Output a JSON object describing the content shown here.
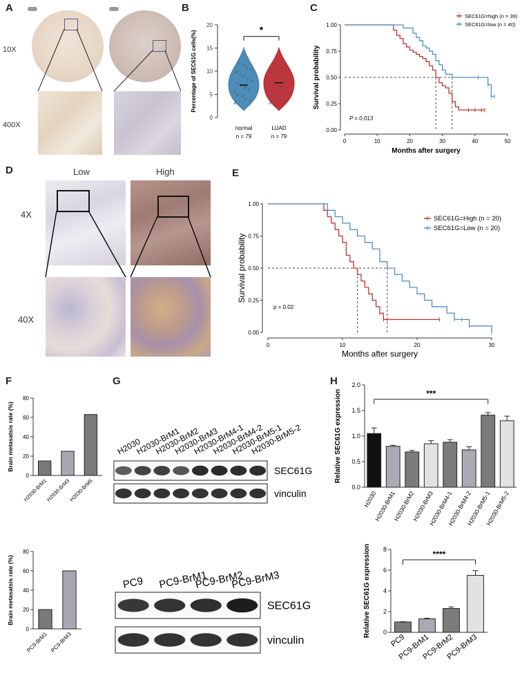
{
  "panels": {
    "a": {
      "letter": "A",
      "mag_low": "10X",
      "mag_high": "400X"
    },
    "b": {
      "letter": "B"
    },
    "c": {
      "letter": "C"
    },
    "d": {
      "letter": "D",
      "col_low": "Low",
      "col_high": "High",
      "mag_low": "4X",
      "mag_high": "40X"
    },
    "e": {
      "letter": "E"
    },
    "f": {
      "letter": "F"
    },
    "f2": {
      "letter": "F"
    },
    "g": {
      "letter": "G"
    },
    "h": {
      "letter": "H"
    }
  },
  "colors": {
    "high_red": "#c62f2f",
    "low_blue": "#4d8fc4",
    "normal_violin": "#3a7fb0",
    "luad_violin": "#b82028"
  },
  "chart_data": [
    {
      "id": "B",
      "type": "violin",
      "ylabel": "Percentage of SEC61G cells(%)",
      "yticks": [
        "0",
        "5",
        "10",
        "15",
        "20"
      ],
      "ylim": [
        0,
        20
      ],
      "categories": [
        "normal\nn = 79",
        "LUAD\nn = 79"
      ],
      "cat_names": [
        "normal",
        "LUAD"
      ],
      "cat_n": [
        "n = 79",
        "n = 79"
      ],
      "medians": [
        7,
        7.5
      ],
      "significance": "*"
    },
    {
      "id": "C",
      "type": "line",
      "xlabel": "Months after surgery",
      "ylabel": "Survival probability",
      "xticks": [
        "0",
        "10",
        "20",
        "30",
        "40",
        "50"
      ],
      "yticks": [
        "0.00",
        "0.25",
        "0.50",
        "0.75",
        "1.00"
      ],
      "xlim": [
        0,
        50
      ],
      "ylim": [
        0,
        1
      ],
      "pvalue": "P = 0.013",
      "series": [
        {
          "name": "SEC61G=high (n = 39)",
          "x": [
            0,
            13,
            15,
            16,
            17,
            18,
            19,
            20,
            21,
            22,
            23,
            24,
            25,
            26,
            27,
            28,
            29,
            30,
            31,
            32,
            33,
            34,
            35,
            37,
            38,
            40,
            42,
            43
          ],
          "y": [
            1,
            1,
            0.95,
            0.9,
            0.87,
            0.82,
            0.79,
            0.76,
            0.74,
            0.72,
            0.7,
            0.68,
            0.65,
            0.61,
            0.57,
            0.5,
            0.45,
            0.42,
            0.4,
            0.35,
            0.27,
            0.22,
            0.19,
            0.19,
            0.19,
            0.19,
            0.19,
            0.19
          ]
        },
        {
          "name": "SEC61G=low (n = 40)",
          "x": [
            0,
            13,
            18,
            21,
            22,
            23,
            24,
            25,
            26,
            27,
            28,
            29,
            30,
            31,
            33,
            35,
            38,
            41,
            44,
            45,
            46
          ],
          "y": [
            1,
            1,
            0.97,
            0.92,
            0.88,
            0.85,
            0.8,
            0.78,
            0.75,
            0.72,
            0.66,
            0.62,
            0.57,
            0.53,
            0.5,
            0.5,
            0.5,
            0.5,
            0.43,
            0.32,
            0.32
          ]
        }
      ],
      "medians_x": [
        28,
        33
      ]
    },
    {
      "id": "E",
      "type": "line",
      "xlabel": "Months after surgery",
      "ylabel": "Survival probability",
      "xticks": [
        "0",
        "10",
        "20",
        "30"
      ],
      "yticks": [
        "0.00",
        "0.25",
        "0.50",
        "0.75",
        "1.00"
      ],
      "xlim": [
        0,
        30
      ],
      "ylim": [
        0,
        1
      ],
      "pvalue": "p = 0.02",
      "series": [
        {
          "name": "SEC61G=High  (n = 20)",
          "x": [
            0,
            7,
            7.5,
            8,
            8.5,
            9,
            9.5,
            10,
            10.5,
            11,
            11.5,
            12,
            12.5,
            13,
            13.5,
            14,
            14.5,
            15,
            15.5,
            16,
            23
          ],
          "y": [
            1,
            1,
            0.95,
            0.9,
            0.85,
            0.8,
            0.75,
            0.7,
            0.6,
            0.55,
            0.5,
            0.45,
            0.4,
            0.35,
            0.3,
            0.25,
            0.2,
            0.15,
            0.1,
            0.1,
            0.1
          ]
        },
        {
          "name": "SEC61G=Low  (n = 20)",
          "x": [
            0,
            7,
            8,
            9,
            10,
            11,
            12,
            13,
            14,
            15,
            16,
            17,
            18,
            19,
            20,
            21,
            22,
            23,
            24,
            25,
            26,
            27,
            30
          ],
          "y": [
            1,
            1,
            0.95,
            0.9,
            0.85,
            0.8,
            0.75,
            0.7,
            0.65,
            0.55,
            0.5,
            0.45,
            0.4,
            0.35,
            0.3,
            0.25,
            0.2,
            0.2,
            0.15,
            0.1,
            0.1,
            0.05,
            0
          ]
        }
      ],
      "medians_x": [
        12,
        16
      ]
    },
    {
      "id": "F1",
      "type": "bar",
      "ylabel": "Brain metasatsis rate  (%)",
      "categories": [
        "H2030-BrM1",
        "H2030-BrM3",
        "H2030-BrM5"
      ],
      "values": [
        15,
        25,
        63
      ],
      "yticks": [
        "0",
        "20",
        "40",
        "60",
        "80"
      ],
      "ylim": [
        0,
        80
      ]
    },
    {
      "id": "F2",
      "type": "bar",
      "ylabel": "Brain metasatsis rate  (%)",
      "categories": [
        "PC9-BrM1",
        "PC9-BrM3"
      ],
      "values": [
        20,
        60
      ],
      "yticks": [
        "0",
        "20",
        "40",
        "60",
        "80"
      ],
      "ylim": [
        0,
        80
      ]
    },
    {
      "id": "G1",
      "type": "blot",
      "lanes": [
        "H2030",
        "H2030-BrM1",
        "H2030-BrM2",
        "H2030-BrM3",
        "H2030-BrM4-1",
        "H2030-BrM4-2",
        "H2030-BrM5-1",
        "H2030-BrM5-2"
      ],
      "bands": [
        "SEC61G",
        "vinculin"
      ],
      "intensity": [
        0.55,
        0.72,
        0.75,
        0.6,
        0.9,
        0.9,
        0.88,
        0.88
      ]
    },
    {
      "id": "G2",
      "type": "blot",
      "lanes": [
        "PC9",
        "PC9-BrM1",
        "PC9-BrM2",
        "PC9-BrM3"
      ],
      "bands": [
        "SEC61G",
        "vinculin"
      ],
      "intensity": [
        0.8,
        0.85,
        0.87,
        1.0
      ]
    },
    {
      "id": "H1",
      "type": "bar",
      "ylabel": "Relative SEC61G expression",
      "categories": [
        "H2030",
        "H2030-BrM1",
        "H2030-BrM2",
        "H2030-BrM3",
        "H2030-BrM4-1",
        "H2030-BrM4-2",
        "H2030-BrM5-1",
        "H2030-BrM5-2"
      ],
      "values": [
        1.05,
        0.8,
        0.69,
        0.85,
        0.88,
        0.73,
        1.41,
        1.3
      ],
      "errors": [
        0.11,
        0.02,
        0.03,
        0.06,
        0.05,
        0.06,
        0.05,
        0.09
      ],
      "yticks": [
        "0.0",
        "0.5",
        "1.0",
        "1.5",
        "2.0"
      ],
      "ylim": [
        0,
        2
      ],
      "significance": "***"
    },
    {
      "id": "H2",
      "type": "bar",
      "ylabel": "Relative SEC61G expression",
      "categories": [
        "PC9",
        "PC9-BrM1",
        "PC9-BrM2",
        "PC9-BrM3"
      ],
      "values": [
        1.0,
        1.3,
        2.3,
        5.5
      ],
      "errors": [
        0.03,
        0.06,
        0.15,
        0.45
      ],
      "yticks": [
        "0",
        "2",
        "4",
        "6",
        "8"
      ],
      "ylim": [
        0,
        8
      ],
      "significance": "****"
    }
  ]
}
